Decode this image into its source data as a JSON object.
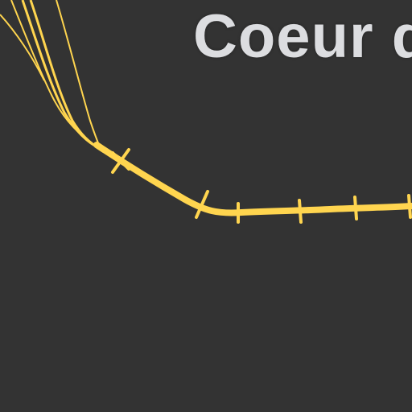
{
  "map": {
    "background_color": "#333333",
    "rail_color": "#ffd54f",
    "label_color": "#dcdde0",
    "place_label": "Coeur d"
  }
}
